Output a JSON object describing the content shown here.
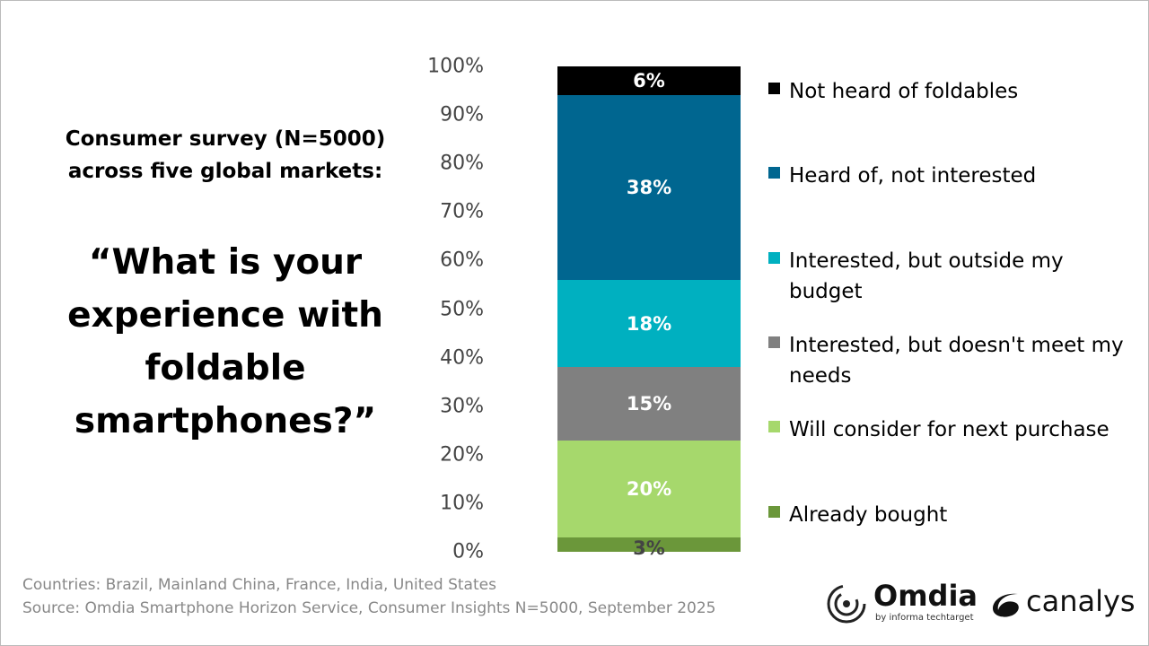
{
  "subtitle": "Consumer survey (N=5000) across five global markets:",
  "question": "“What is your experience with foldable smartphones?”",
  "footer": {
    "countries": "Countries: Brazil, Mainland China, France, India, United States",
    "source": "Source: Omdia Smartphone Horizon Service, Consumer Insights N=5000, September 2025"
  },
  "logos": {
    "omdia": "Omdia",
    "omdia_tag": "by informa techtarget",
    "canalys": "canalys"
  },
  "chart_data": {
    "type": "bar",
    "stacked": true,
    "ylim": [
      0,
      100
    ],
    "yticks": [
      "0%",
      "10%",
      "20%",
      "30%",
      "40%",
      "50%",
      "60%",
      "70%",
      "80%",
      "90%",
      "100%"
    ],
    "legend_placement": "right",
    "series": [
      {
        "name": "Already bought",
        "value": 3,
        "label": "3%",
        "color": "#6b973a",
        "label_color": "#444444"
      },
      {
        "name": "Will consider for next purchase",
        "value": 20,
        "label": "20%",
        "color": "#a6d86c",
        "label_color": "#ffffff"
      },
      {
        "name": "Interested, but doesn't meet my needs",
        "value": 15,
        "label": "15%",
        "color": "#808080",
        "label_color": "#ffffff"
      },
      {
        "name": "Interested, but outside my budget",
        "value": 18,
        "label": "18%",
        "color": "#00b0c0",
        "label_color": "#ffffff"
      },
      {
        "name": "Heard of, not interested",
        "value": 38,
        "label": "38%",
        "color": "#006690",
        "label_color": "#ffffff"
      },
      {
        "name": "Not heard of foldables",
        "value": 6,
        "label": "6%",
        "color": "#000000",
        "label_color": "#ffffff"
      }
    ]
  }
}
